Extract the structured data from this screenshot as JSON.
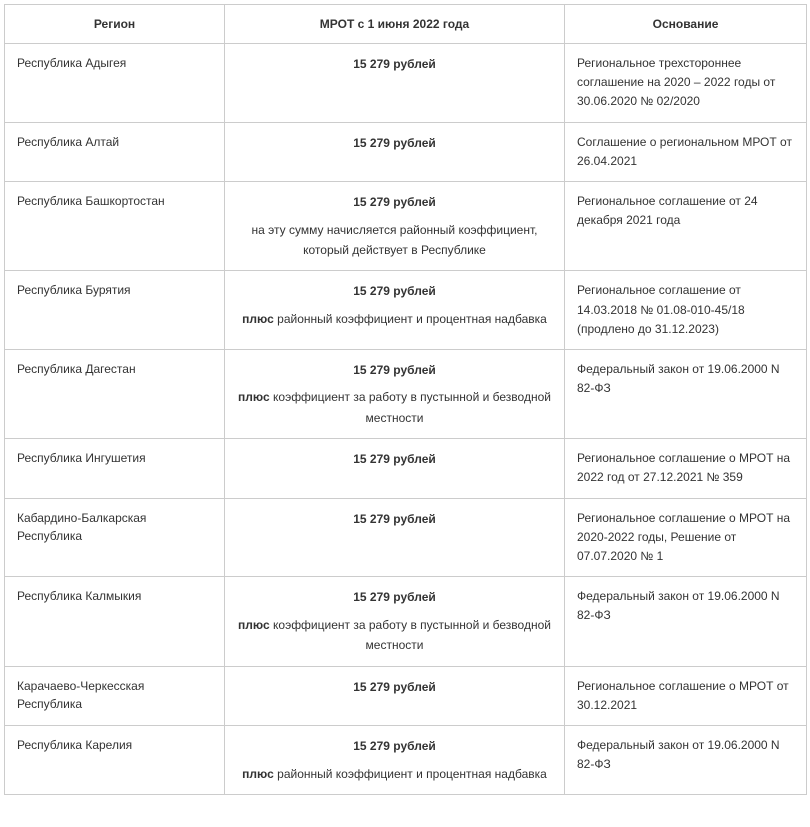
{
  "columns": {
    "region": "Регион",
    "mrot": "МРОТ с 1 июня 2022 года",
    "basis": "Основание"
  },
  "rows": [
    {
      "region": "Республика Адыгея",
      "amount": "15 279 рублей",
      "note": "",
      "plus_prefix": "",
      "basis": "Региональное трехстороннее соглашение на 2020 – 2022 годы от 30.06.2020 № 02/2020"
    },
    {
      "region": "Республика Алтай",
      "amount": "15 279 рублей",
      "note": "",
      "plus_prefix": "",
      "basis": "Соглашение о региональном МРОТ от 26.04.2021"
    },
    {
      "region": "Республика Башкортостан",
      "amount": "15 279 рублей",
      "note": "на эту сумму начисляется районный коэффициент, который действует в Республике",
      "plus_prefix": "",
      "basis": "Региональное соглашение от 24 декабря 2021 года"
    },
    {
      "region": "Республика Бурятия",
      "amount": "15 279 рублей",
      "note": " районный коэффициент и процентная надбавка",
      "plus_prefix": "плюс",
      "basis": "Региональное соглашение от 14.03.2018 № 01.08-010-45/18 (продлено до 31.12.2023)"
    },
    {
      "region": "Республика Дагестан",
      "amount": "15 279 рублей",
      "note": " коэффициент за работу в пустынной и безводной местности",
      "plus_prefix": "плюс",
      "basis": "Федеральный закон от 19.06.2000 N 82-ФЗ"
    },
    {
      "region": "Республика Ингушетия",
      "amount": "15 279 рублей",
      "note": "",
      "plus_prefix": "",
      "basis": "Региональное соглашение о МРОТ на 2022 год от 27.12.2021 № 359"
    },
    {
      "region": "Кабардино-Балкарская Республика",
      "amount": "15 279 рублей",
      "note": "",
      "plus_prefix": "",
      "basis": "Региональное соглашение о МРОТ на 2020-2022 годы, Решение от 07.07.2020 № 1"
    },
    {
      "region": "Республика Калмыкия",
      "amount": "15 279 рублей",
      "note": " коэффициент за работу в пустынной и безводной местности",
      "plus_prefix": "плюс",
      "basis": "Федеральный закон от 19.06.2000 N 82-ФЗ"
    },
    {
      "region": "Карачаево-Черкесская Республика",
      "amount": "15 279 рублей",
      "note": "",
      "plus_prefix": "",
      "basis": "Региональное соглашение о МРОТ от 30.12.2021"
    },
    {
      "region": "Республика Карелия",
      "amount": "15 279 рублей",
      "note": " районный коэффициент и процентная надбавка",
      "plus_prefix": "плюс",
      "basis": "Федеральный закон от 19.06.2000 N 82-ФЗ"
    }
  ]
}
